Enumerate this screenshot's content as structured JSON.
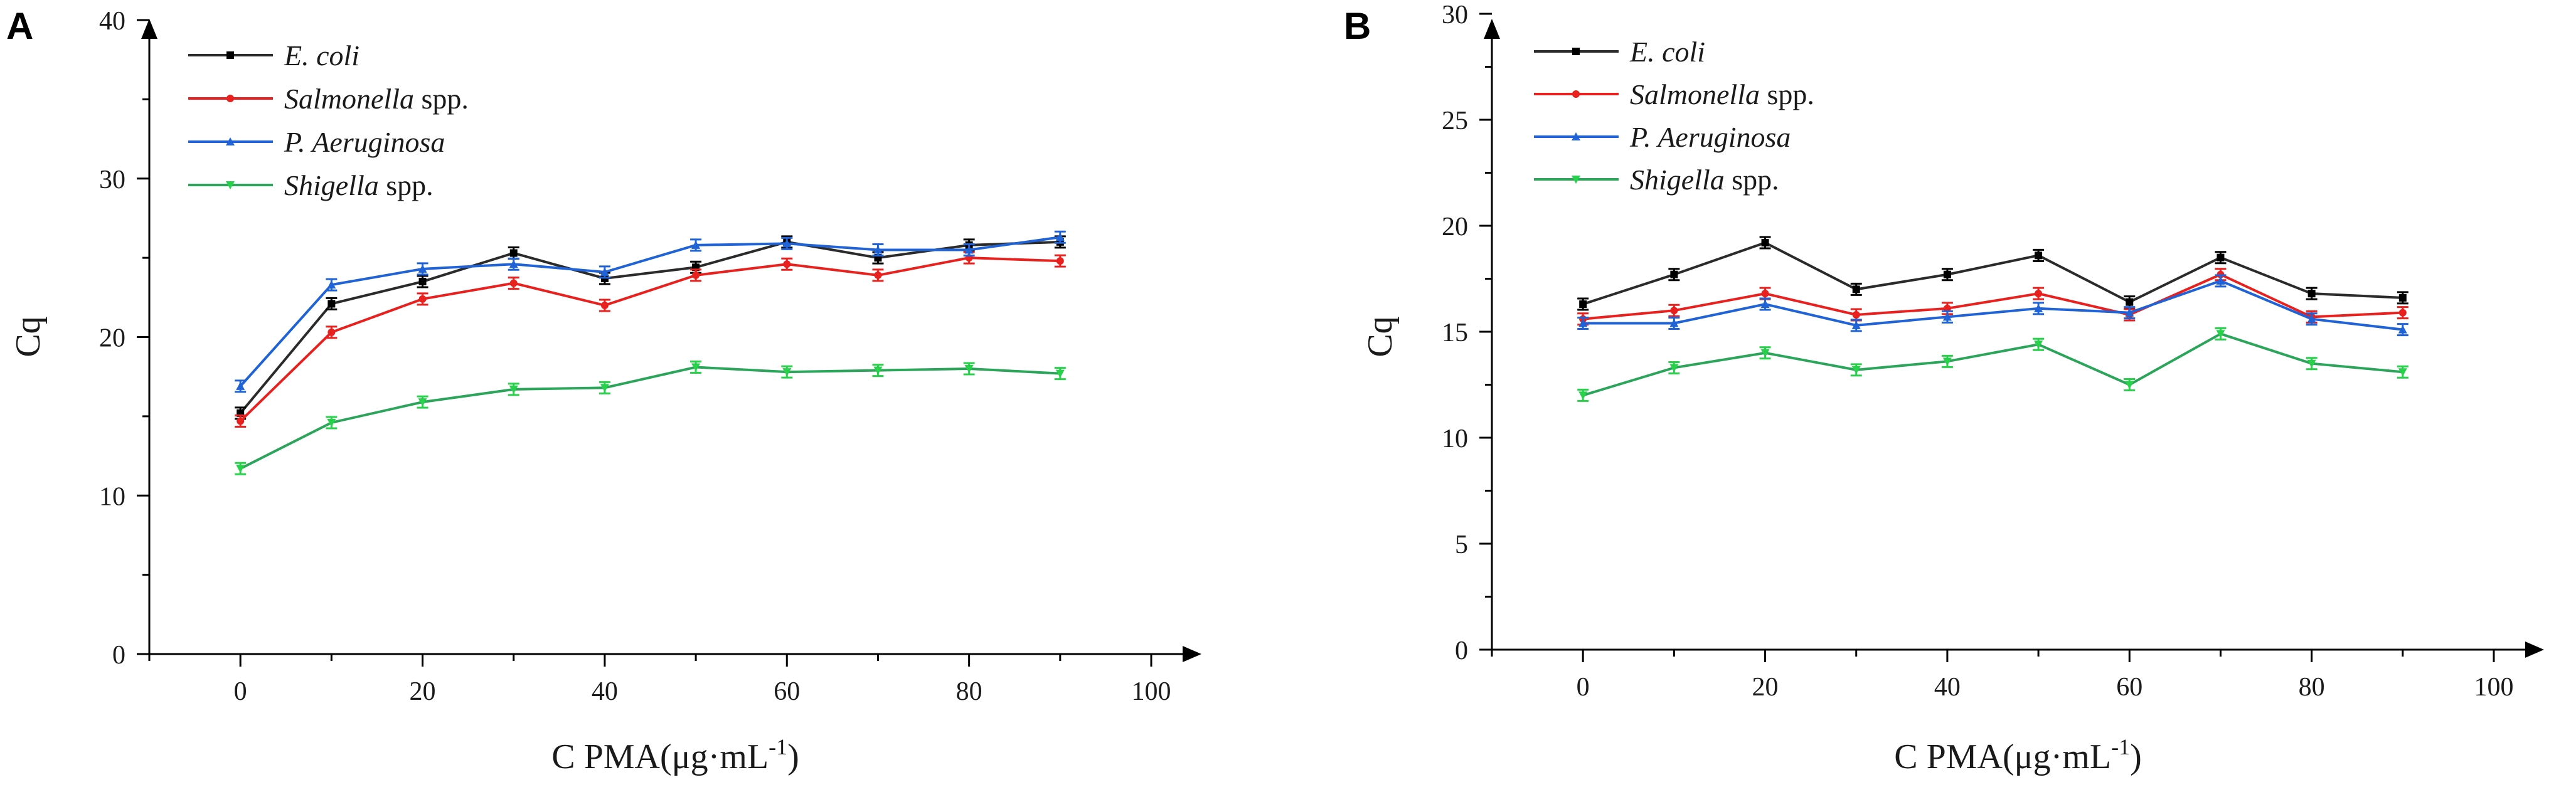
{
  "colors": {
    "axis": "#000000",
    "series": [
      "#2b2b2b",
      "#e8201e",
      "#1f63d6",
      "#2aa55a"
    ],
    "marker": [
      "#000000",
      "#e8201e",
      "#1f63d6",
      "#27d14a"
    ]
  },
  "chart_data": [
    {
      "panel": "A",
      "type": "line",
      "xlabel": "C PMA(μg·mL",
      "xlabel_sup": "-1",
      "xlabel_tail": ")",
      "ylabel": "Cq",
      "xlim": [
        -10,
        100
      ],
      "ylim": [
        0,
        40
      ],
      "xticks": [
        "0",
        "20",
        "40",
        "60",
        "80",
        "100"
      ],
      "yticks": [
        "0",
        "10",
        "20",
        "30",
        "40"
      ],
      "legend_position": "top-left",
      "x": [
        0,
        10,
        20,
        30,
        40,
        50,
        60,
        70,
        80,
        90
      ],
      "series": [
        {
          "name": "E. coli",
          "suffix": "",
          "values": [
            15.2,
            22.1,
            23.5,
            25.3,
            23.7,
            24.4,
            26.0,
            25.0,
            25.8,
            26.0
          ]
        },
        {
          "name": "Salmonella",
          "suffix": " spp.",
          "values": [
            14.7,
            20.3,
            22.4,
            23.4,
            22.0,
            23.9,
            24.6,
            23.9,
            25.0,
            24.8
          ]
        },
        {
          "name": "P. Aeruginosa",
          "suffix": "",
          "values": [
            16.9,
            23.3,
            24.3,
            24.6,
            24.1,
            25.8,
            25.9,
            25.5,
            25.5,
            26.3
          ]
        },
        {
          "name": "Shigella",
          "suffix": " spp.",
          "values": [
            11.7,
            14.6,
            15.9,
            16.7,
            16.8,
            18.1,
            17.8,
            17.9,
            18.0,
            17.7
          ]
        }
      ]
    },
    {
      "panel": "B",
      "type": "line",
      "xlabel": "C PMA(μg·mL",
      "xlabel_sup": "-1",
      "xlabel_tail": ")",
      "ylabel": "Cq",
      "xlim": [
        -10,
        100
      ],
      "ylim": [
        0,
        30
      ],
      "xticks": [
        "0",
        "20",
        "40",
        "60",
        "80",
        "100"
      ],
      "yticks": [
        "0",
        "5",
        "10",
        "15",
        "20",
        "25",
        "30"
      ],
      "legend_position": "top-left",
      "x": [
        0,
        10,
        20,
        30,
        40,
        50,
        60,
        70,
        80,
        90
      ],
      "series": [
        {
          "name": "E. coli",
          "suffix": "",
          "values": [
            16.3,
            17.7,
            19.2,
            17.0,
            17.7,
            18.6,
            16.4,
            18.5,
            16.8,
            16.6
          ]
        },
        {
          "name": "Salmonella",
          "suffix": " spp.",
          "values": [
            15.6,
            16.0,
            16.8,
            15.8,
            16.1,
            16.8,
            15.8,
            17.7,
            15.7,
            15.9
          ]
        },
        {
          "name": "P. Aeruginosa",
          "suffix": "",
          "values": [
            15.4,
            15.4,
            16.3,
            15.3,
            15.7,
            16.1,
            15.9,
            17.4,
            15.6,
            15.1
          ]
        },
        {
          "name": "Shigella",
          "suffix": " spp.",
          "values": [
            12.0,
            13.3,
            14.0,
            13.2,
            13.6,
            14.4,
            12.5,
            14.9,
            13.5,
            13.1
          ]
        }
      ]
    }
  ]
}
